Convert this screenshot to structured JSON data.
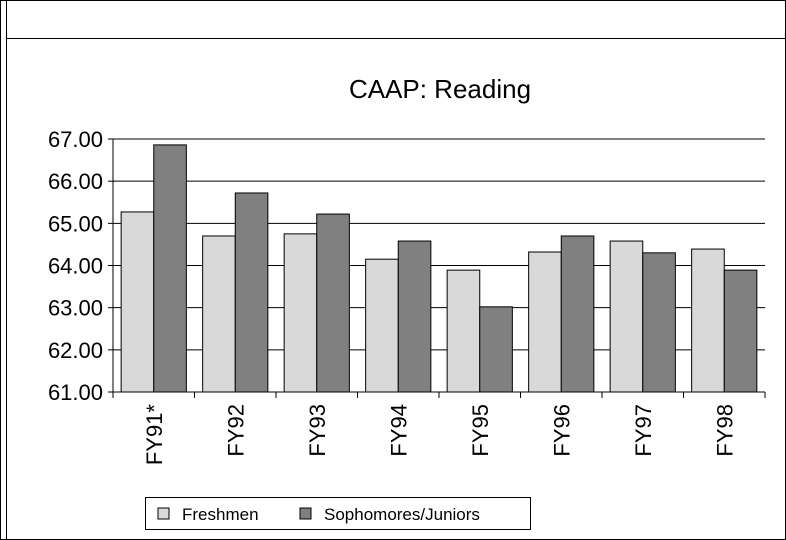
{
  "chart_data": {
    "type": "bar",
    "title": "CAAP: Reading",
    "categories": [
      "FY91*",
      "FY92",
      "FY93",
      "FY94",
      "FY95",
      "FY96",
      "FY97",
      "FY98"
    ],
    "series": [
      {
        "name": "Freshmen",
        "color": "#d9d9d9",
        "values": [
          65.27,
          64.7,
          64.75,
          64.15,
          63.89,
          64.32,
          64.58,
          64.39
        ]
      },
      {
        "name": "Sophomores/Juniors",
        "color": "#808080",
        "values": [
          66.86,
          65.72,
          65.22,
          64.58,
          63.02,
          64.7,
          64.3,
          63.89
        ]
      }
    ],
    "ylim": [
      61,
      67
    ],
    "yticks": [
      {
        "value": 61,
        "label": "61.00"
      },
      {
        "value": 62,
        "label": "62.00"
      },
      {
        "value": 63,
        "label": "63.00"
      },
      {
        "value": 64,
        "label": "64.00"
      },
      {
        "value": 65,
        "label": "65.00"
      },
      {
        "value": 66,
        "label": "66.00"
      },
      {
        "value": 67,
        "label": "67.00"
      }
    ],
    "grid": true,
    "legend": "bottom"
  }
}
